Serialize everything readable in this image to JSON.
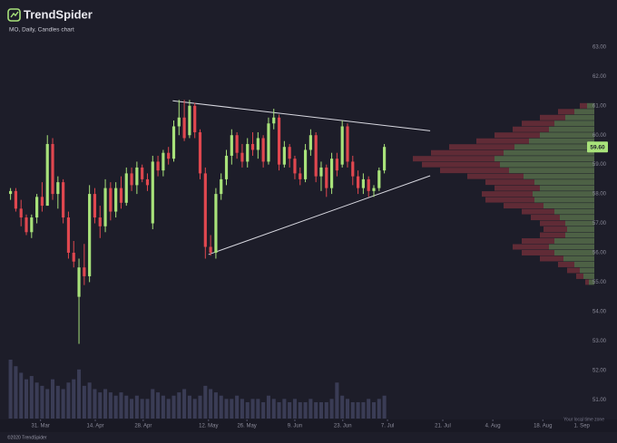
{
  "brand": "TrendSpider",
  "chart_data": {
    "type": "candlestick",
    "title": "MO, Daily, Candles chart",
    "x": [
      1,
      2,
      3,
      4,
      5,
      6,
      7,
      8,
      9,
      10,
      11,
      12,
      13,
      14,
      15,
      16,
      17,
      18,
      19,
      20,
      21,
      22,
      23,
      24,
      25,
      26,
      27,
      28,
      29,
      30,
      31,
      32,
      33,
      34,
      35,
      36,
      37,
      38,
      39,
      40,
      41,
      42,
      43,
      44,
      45,
      46,
      47,
      48,
      49,
      50,
      51,
      52,
      53,
      54,
      55,
      56,
      57,
      58,
      59,
      60,
      61,
      62,
      63,
      64,
      65,
      66,
      67,
      68,
      69,
      70,
      71,
      72
    ],
    "open": [
      58.0,
      58.1,
      57.5,
      57.2,
      56.7,
      57.2,
      57.9,
      57.6,
      59.7,
      58.0,
      58.4,
      57.2,
      56.0,
      54.5,
      55.5,
      55.2,
      58.0,
      57.2,
      56.9,
      58.2,
      57.4,
      58.2,
      57.7,
      58.7,
      58.3,
      58.9,
      58.5,
      57.0,
      59.1,
      58.8,
      59.4,
      59.2,
      60.3,
      60.6,
      60.0,
      61.0,
      60.1,
      58.7,
      56.2,
      56.0,
      58.0,
      58.5,
      59.3,
      60.0,
      59.4,
      59.1,
      59.7,
      59.5,
      59.9,
      59.1,
      60.4,
      60.6,
      59.0,
      59.6,
      59.2,
      58.7,
      58.5,
      59.5,
      60.0,
      58.6,
      58.9,
      58.2,
      59.2,
      59.0,
      60.3,
      59.1,
      58.6,
      58.2,
      58.5,
      58.1,
      58.2,
      58.8
    ],
    "high": [
      58.2,
      58.2,
      57.8,
      57.3,
      57.3,
      58.0,
      58.4,
      60.0,
      59.9,
      58.6,
      58.5,
      57.4,
      56.4,
      55.8,
      56.3,
      58.3,
      58.2,
      57.6,
      58.5,
      58.4,
      58.4,
      58.6,
      58.9,
      58.9,
      59.1,
      59.0,
      58.7,
      59.3,
      59.3,
      59.5,
      59.6,
      60.5,
      61.2,
      61.2,
      61.2,
      61.1,
      60.2,
      58.9,
      56.6,
      58.2,
      58.7,
      59.5,
      60.2,
      60.1,
      59.7,
      59.9,
      60.1,
      60.1,
      60.0,
      60.6,
      60.9,
      60.7,
      59.8,
      59.7,
      59.3,
      58.9,
      59.7,
      60.2,
      60.1,
      59.1,
      59.0,
      59.4,
      59.4,
      60.5,
      60.4,
      59.3,
      58.8,
      58.7,
      58.6,
      58.3,
      58.9,
      59.7
    ],
    "low": [
      57.8,
      57.4,
      56.9,
      56.6,
      56.5,
      57.0,
      57.4,
      57.6,
      57.8,
      57.5,
      57.0,
      55.8,
      55.5,
      52.9,
      54.9,
      55.0,
      57.0,
      56.5,
      56.7,
      57.1,
      57.2,
      57.5,
      57.6,
      58.1,
      58.0,
      58.4,
      58.1,
      56.8,
      58.6,
      58.6,
      59.0,
      59.1,
      60.0,
      59.8,
      59.9,
      59.9,
      58.5,
      55.8,
      55.9,
      55.8,
      57.8,
      58.3,
      59.0,
      59.2,
      58.9,
      58.9,
      59.3,
      59.2,
      58.9,
      59.0,
      60.2,
      58.8,
      58.9,
      58.9,
      58.5,
      58.3,
      58.4,
      59.3,
      58.4,
      58.1,
      57.9,
      58.0,
      58.6,
      58.9,
      58.9,
      58.3,
      58.0,
      58.0,
      57.9,
      57.9,
      58.1,
      58.7
    ],
    "close": [
      58.1,
      57.5,
      57.2,
      56.7,
      57.2,
      57.9,
      57.6,
      59.7,
      58.0,
      58.4,
      57.2,
      56.0,
      55.7,
      55.5,
      55.2,
      58.0,
      57.2,
      56.9,
      58.2,
      57.4,
      58.2,
      57.7,
      58.7,
      58.3,
      58.9,
      58.5,
      58.3,
      59.1,
      58.8,
      59.4,
      59.2,
      60.3,
      60.6,
      59.9,
      61.0,
      60.1,
      58.7,
      56.2,
      56.0,
      58.0,
      58.5,
      59.3,
      60.0,
      59.4,
      59.1,
      59.7,
      59.5,
      59.9,
      59.1,
      60.4,
      60.6,
      59.0,
      59.6,
      59.2,
      58.7,
      58.5,
      59.5,
      60.0,
      58.6,
      58.9,
      58.2,
      59.2,
      58.8,
      60.3,
      59.1,
      58.6,
      58.2,
      58.5,
      58.1,
      58.2,
      58.8,
      59.6
    ],
    "volume": [
      18,
      16,
      14,
      12,
      13,
      11,
      10,
      9,
      12,
      10,
      9,
      11,
      12,
      15,
      10,
      11,
      9,
      8,
      9,
      8,
      7,
      8,
      7,
      6,
      7,
      6,
      6,
      9,
      8,
      7,
      6,
      7,
      8,
      9,
      7,
      6,
      7,
      10,
      9,
      8,
      7,
      6,
      6,
      7,
      6,
      5,
      6,
      6,
      5,
      7,
      6,
      5,
      6,
      5,
      6,
      5,
      5,
      6,
      5,
      5,
      5,
      6,
      11,
      7,
      6,
      5,
      5,
      5,
      6,
      5,
      6,
      7
    ],
    "up_color": "#a8e27a",
    "down_color": "#e0474f",
    "volume_color": "#3a3c55",
    "trendline_color": "#d8d8e0",
    "xlim": [
      -1,
      113.6
    ],
    "xticks": [
      {
        "value": 6.7,
        "label": "31. Mar"
      },
      {
        "value": 17.1,
        "label": "14. Apr"
      },
      {
        "value": 26.2,
        "label": "28. Apr"
      },
      {
        "value": 38.6,
        "label": "12. May"
      },
      {
        "value": 45.9,
        "label": "26. May"
      },
      {
        "value": 55,
        "label": "9. Jun"
      },
      {
        "value": 64.1,
        "label": "23. Jun"
      },
      {
        "value": 72.6,
        "label": "7. Jul"
      },
      {
        "value": 83.1,
        "label": "21. Jul"
      },
      {
        "value": 92.6,
        "label": "4. Aug"
      },
      {
        "value": 102.1,
        "label": "18. Aug"
      },
      {
        "value": 109.5,
        "label": "1. Sep"
      }
    ],
    "ylim": [
      50.42,
      64.6
    ],
    "yticks": [
      {
        "value": 51,
        "label": "51.00"
      },
      {
        "value": 52,
        "label": "52.00"
      },
      {
        "value": 53,
        "label": "53.00"
      },
      {
        "value": 54,
        "label": "54.00"
      },
      {
        "value": 55,
        "label": "55.00"
      },
      {
        "value": 56,
        "label": "56.00"
      },
      {
        "value": 57,
        "label": "57.00"
      },
      {
        "value": 58,
        "label": "58.00"
      },
      {
        "value": 59,
        "label": "59.00"
      },
      {
        "value": 60,
        "label": "60.00"
      },
      {
        "value": 61,
        "label": "61.00"
      },
      {
        "value": 62,
        "label": "62.00"
      },
      {
        "value": 63,
        "label": "63.00"
      }
    ],
    "grid": false,
    "last_price": {
      "value": 59.6,
      "label": "59.60"
    },
    "trendlines": [
      {
        "x": [
          31.8,
          80.7
        ],
        "y": [
          61.17,
          60.15
        ]
      },
      {
        "x": [
          38.6,
          80.7
        ],
        "y": [
          55.94,
          58.62
        ]
      }
    ],
    "volume_profile": {
      "levels": [
        55.0,
        55.2,
        55.4,
        55.6,
        55.8,
        56.0,
        56.2,
        56.4,
        56.6,
        56.8,
        57.0,
        57.2,
        57.4,
        57.6,
        57.8,
        58.0,
        58.2,
        58.4,
        58.6,
        58.8,
        59.0,
        59.2,
        59.4,
        59.6,
        59.8,
        60.0,
        60.2,
        60.4,
        60.6,
        60.8,
        61.0
      ],
      "buy": [
        3,
        6,
        8,
        11,
        17,
        22,
        25,
        22,
        16,
        15,
        16,
        19,
        22,
        28,
        33,
        34,
        30,
        33,
        39,
        47,
        52,
        55,
        50,
        44,
        36,
        30,
        25,
        22,
        16,
        11,
        4
      ],
      "sell": [
        2,
        4,
        7,
        9,
        13,
        18,
        20,
        18,
        14,
        13,
        14,
        16,
        18,
        22,
        27,
        28,
        25,
        27,
        31,
        38,
        43,
        45,
        40,
        36,
        29,
        25,
        20,
        18,
        14,
        9,
        4
      ]
    },
    "time_zone_note": "Your local time zone"
  },
  "footer": "©2020 TrendSpider"
}
